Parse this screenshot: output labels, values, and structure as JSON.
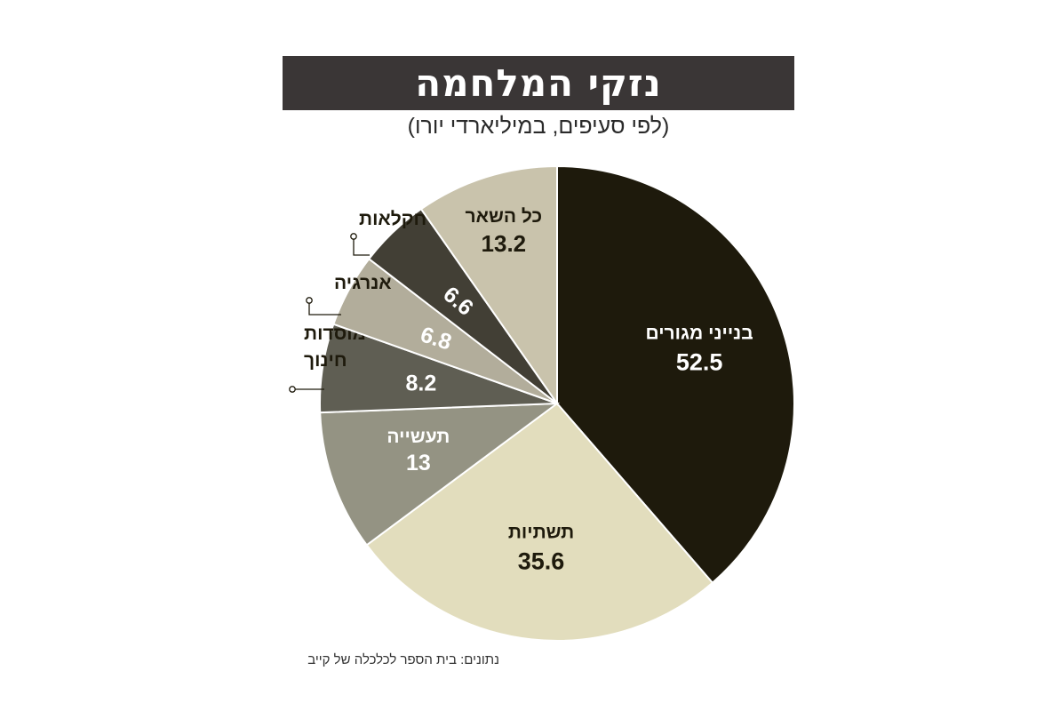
{
  "header": {
    "title": "נזקי המלחמה",
    "subtitle": "(לפי סעיפים, במיליארדי יורו)"
  },
  "footer": {
    "source": "נתונים: בית הספר לכלכלה של קייב"
  },
  "colors": {
    "title_bg": "#3a3636",
    "residential": "#1e1a0c",
    "infrastructure": "#e2ddbd",
    "industry": "#949383",
    "education": "#5f5e53",
    "energy": "#b2ad9b",
    "agriculture": "#423f35",
    "other": "#c9c3ac"
  },
  "chart_data": {
    "type": "pie",
    "title": "נזקי המלחמה",
    "subtitle": "(לפי סעיפים, במיליארדי יורו)",
    "unit": "מיליארדי יורו",
    "slices": [
      {
        "label": "בנייני מגורים",
        "value": 52.5,
        "value_text": "52.5"
      },
      {
        "label": "תשתיות",
        "value": 35.6,
        "value_text": "35.6"
      },
      {
        "label": "תעשייה",
        "value": 13,
        "value_text": "13"
      },
      {
        "label": "מוסדות חינוך",
        "value": 8.2,
        "value_text": "8.2"
      },
      {
        "label": "אנרגיה",
        "value": 6.8,
        "value_text": "6.8"
      },
      {
        "label": "חקלאות",
        "value": 6.6,
        "value_text": "6.6"
      },
      {
        "label": "כל השאר",
        "value": 13.2,
        "value_text": "13.2"
      }
    ],
    "start": "12 o'clock",
    "direction": "clockwise"
  }
}
